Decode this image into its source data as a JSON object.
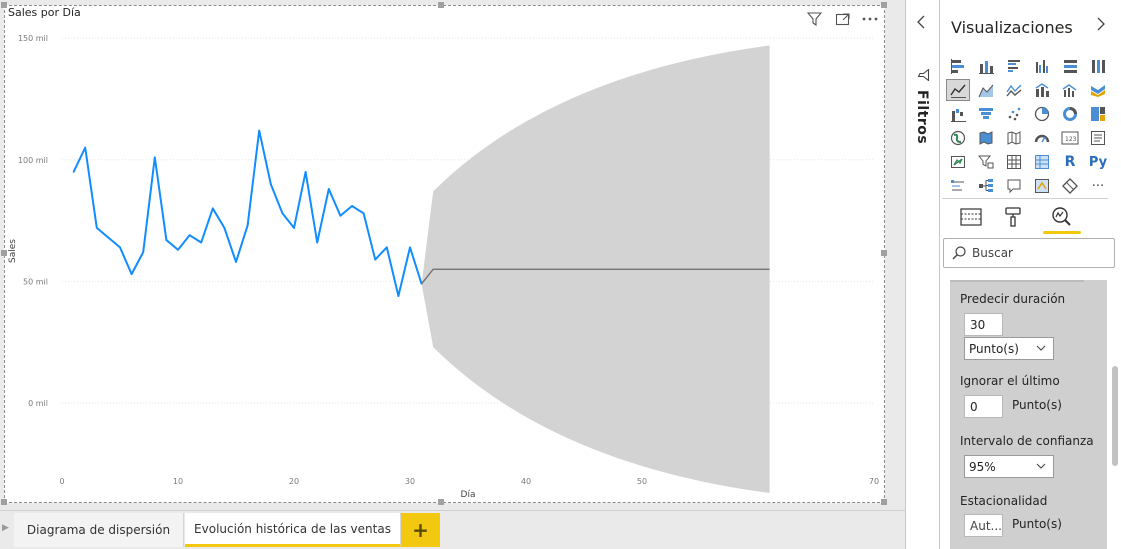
{
  "visual": {
    "title": "Sales por Día"
  },
  "chart_data": {
    "type": "line",
    "title": "Sales por Día",
    "xlabel": "Día",
    "ylabel": "Sales",
    "xlim": [
      0,
      70
    ],
    "ylim": [
      -30,
      155
    ],
    "x_ticks": [
      0,
      10,
      20,
      30,
      40,
      50,
      60,
      70
    ],
    "x_tick_labels": [
      "0",
      "10",
      "20",
      "30",
      "40",
      "50",
      "60",
      "70"
    ],
    "y_ticks": [
      0,
      50,
      100,
      150
    ],
    "y_tick_labels": [
      "0 mil",
      "50 mil",
      "100 mil",
      "150 mil"
    ],
    "grid": true,
    "series": [
      {
        "values_x": [
          1,
          2,
          3,
          4,
          5,
          6,
          7,
          8,
          9,
          10,
          11,
          12,
          13,
          14,
          15,
          16,
          17,
          18,
          19,
          20,
          21,
          22,
          23,
          24,
          25,
          26,
          27,
          28,
          29,
          30,
          31
        ],
        "values_y": [
          95,
          105,
          72,
          68,
          64,
          53,
          62,
          101,
          67,
          63,
          69,
          66,
          80,
          72,
          58,
          73,
          112,
          90,
          78,
          72,
          95,
          66,
          88,
          77,
          81,
          78,
          59,
          64,
          44,
          64,
          49
        ],
        "color": "#118dff"
      }
    ],
    "forecast": {
      "x": [
        31,
        32,
        61
      ],
      "value": [
        49,
        55,
        55
      ],
      "upper": [
        49,
        87,
        147
      ],
      "lower": [
        49,
        23,
        -37
      ],
      "line_color": "#6b6b6b",
      "band_color": "#d3d3d3"
    }
  },
  "tabs": [
    {
      "label": "Diagrama de dispersión"
    },
    {
      "label": "Evolución histórica de las ventas"
    }
  ],
  "tab_add_label": "+",
  "filters": {
    "label": "Filtros"
  },
  "viz_pane": {
    "title": "Visualizaciones",
    "search_placeholder": "Buscar",
    "r_label": "R",
    "py_label": "Py",
    "more_label": "···"
  },
  "forecast_settings": {
    "duration_label": "Predecir duración",
    "duration_value": "30",
    "duration_unit": "Punto(s)",
    "ignore_label": "Ignorar el último",
    "ignore_value": "0",
    "ignore_unit": "Punto(s)",
    "confidence_label": "Intervalo de confianza",
    "confidence_value": "95%",
    "seasonality_label": "Estacionalidad",
    "seasonality_value": "Aut...",
    "seasonality_unit": "Punto(s)"
  },
  "colors": {
    "accent": "#f2c811",
    "series": "#118dff"
  }
}
